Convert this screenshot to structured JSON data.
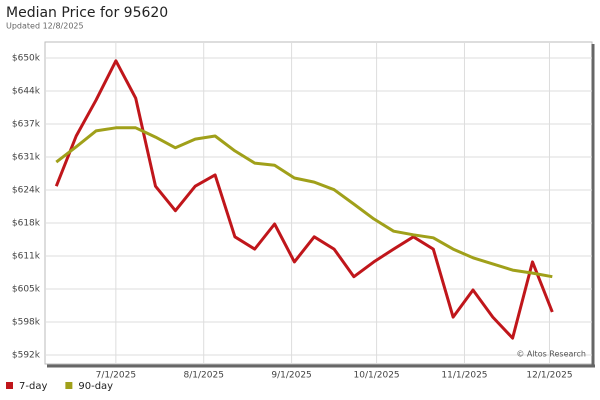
{
  "chart_data": {
    "type": "line",
    "title": "Median Price for 95620",
    "subtitle": "Updated 12/8/2025",
    "annotation": "© Altos Research",
    "x": [
      "2025-06-10",
      "2025-06-17",
      "2025-06-24",
      "2025-07-01",
      "2025-07-08",
      "2025-07-15",
      "2025-07-22",
      "2025-07-29",
      "2025-08-05",
      "2025-08-12",
      "2025-08-19",
      "2025-08-26",
      "2025-09-02",
      "2025-09-09",
      "2025-09-16",
      "2025-09-23",
      "2025-09-30",
      "2025-10-07",
      "2025-10-14",
      "2025-10-21",
      "2025-10-28",
      "2025-11-04",
      "2025-11-11",
      "2025-11-18",
      "2025-11-25",
      "2025-12-02"
    ],
    "series": [
      {
        "name": "7-day",
        "color": "#c0161b",
        "values": [
          625000,
          634800,
          641800,
          649500,
          642200,
          625000,
          620200,
          625000,
          627200,
          615100,
          612700,
          617600,
          610200,
          615100,
          612700,
          607300,
          610200,
          612700,
          615100,
          612700,
          599400,
          604700,
          599400,
          595300,
          610200,
          600400
        ]
      },
      {
        "name": "90-day",
        "color": "#a0a01a",
        "values": [
          629700,
          632700,
          635800,
          636400,
          636400,
          634600,
          632500,
          634200,
          634800,
          631900,
          629500,
          629100,
          626600,
          625800,
          624300,
          621500,
          618600,
          616200,
          615500,
          614900,
          612700,
          611000,
          609800,
          608600,
          608000,
          607300
        ]
      }
    ],
    "xlim": [
      "2025-06-06",
      "2025-12-16"
    ],
    "xticks": [
      {
        "value": "2025-07-01",
        "label": "7/1/2025"
      },
      {
        "value": "2025-08-01",
        "label": "8/1/2025"
      },
      {
        "value": "2025-09-01",
        "label": "9/1/2025"
      },
      {
        "value": "2025-10-01",
        "label": "10/1/2025"
      },
      {
        "value": "2025-11-01",
        "label": "11/1/2025"
      },
      {
        "value": "2025-12-01",
        "label": "12/1/2025"
      }
    ],
    "ylim": [
      590240,
      653180
    ],
    "yticks": [
      {
        "value": 592000,
        "label": "$592k"
      },
      {
        "value": 598450,
        "label": "$598k"
      },
      {
        "value": 604900,
        "label": "$605k"
      },
      {
        "value": 611350,
        "label": "$611k"
      },
      {
        "value": 617800,
        "label": "$618k"
      },
      {
        "value": 624250,
        "label": "$624k"
      },
      {
        "value": 630700,
        "label": "$631k"
      },
      {
        "value": 637150,
        "label": "$637k"
      },
      {
        "value": 643600,
        "label": "$644k"
      },
      {
        "value": 650050,
        "label": "$650k"
      }
    ],
    "grid": true,
    "legend": "bottom-left"
  }
}
